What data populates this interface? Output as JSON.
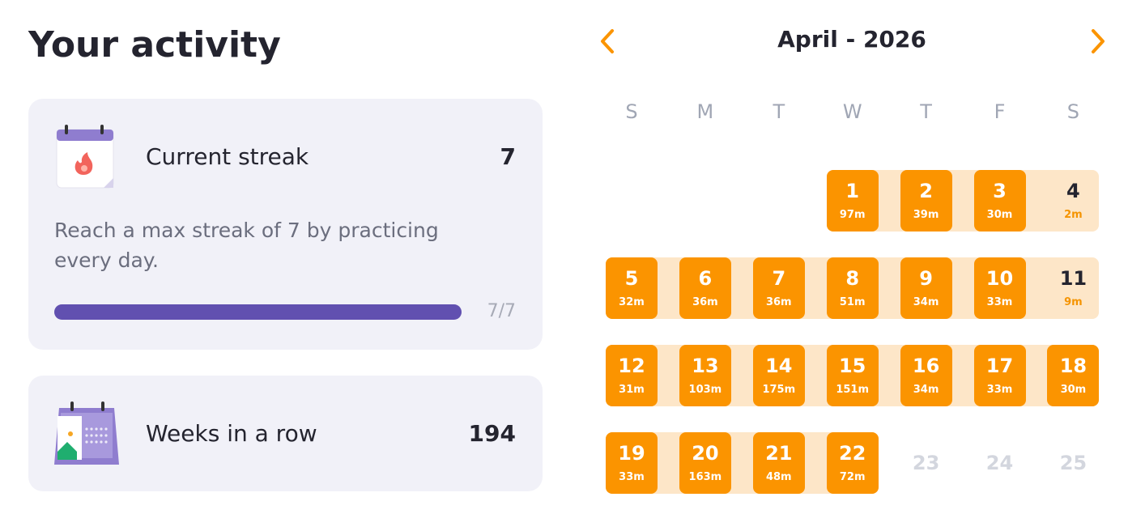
{
  "title": "Your activity",
  "cards": [
    {
      "title": "Current streak",
      "value": "7",
      "description": "Reach a max streak of 7 by practicing every day.",
      "progress_label": "7/7"
    },
    {
      "title": "Weeks in a row",
      "value": "194"
    }
  ],
  "calendar": {
    "title": "April - 2026",
    "weekdays": [
      "S",
      "M",
      "T",
      "W",
      "T",
      "F",
      "S"
    ],
    "weeks": [
      [
        null,
        null,
        null,
        {
          "day": "1",
          "minutes": "97m",
          "style": "full"
        },
        {
          "day": "2",
          "minutes": "39m",
          "style": "full"
        },
        {
          "day": "3",
          "minutes": "30m",
          "style": "full"
        },
        {
          "day": "4",
          "minutes": "2m",
          "style": "light"
        }
      ],
      [
        {
          "day": "5",
          "minutes": "32m",
          "style": "full"
        },
        {
          "day": "6",
          "minutes": "36m",
          "style": "full"
        },
        {
          "day": "7",
          "minutes": "36m",
          "style": "full"
        },
        {
          "day": "8",
          "minutes": "51m",
          "style": "full"
        },
        {
          "day": "9",
          "minutes": "34m",
          "style": "full"
        },
        {
          "day": "10",
          "minutes": "33m",
          "style": "full"
        },
        {
          "day": "11",
          "minutes": "9m",
          "style": "light"
        }
      ],
      [
        {
          "day": "12",
          "minutes": "31m",
          "style": "full"
        },
        {
          "day": "13",
          "minutes": "103m",
          "style": "full"
        },
        {
          "day": "14",
          "minutes": "175m",
          "style": "full"
        },
        {
          "day": "15",
          "minutes": "151m",
          "style": "full"
        },
        {
          "day": "16",
          "minutes": "34m",
          "style": "full"
        },
        {
          "day": "17",
          "minutes": "33m",
          "style": "full"
        },
        {
          "day": "18",
          "minutes": "30m",
          "style": "full"
        }
      ],
      [
        {
          "day": "19",
          "minutes": "33m",
          "style": "full"
        },
        {
          "day": "20",
          "minutes": "163m",
          "style": "full"
        },
        {
          "day": "21",
          "minutes": "48m",
          "style": "full"
        },
        {
          "day": "22",
          "minutes": "72m",
          "style": "full"
        },
        {
          "day": "23",
          "style": "empty"
        },
        {
          "day": "24",
          "style": "empty"
        },
        {
          "day": "25",
          "style": "empty"
        }
      ]
    ]
  }
}
